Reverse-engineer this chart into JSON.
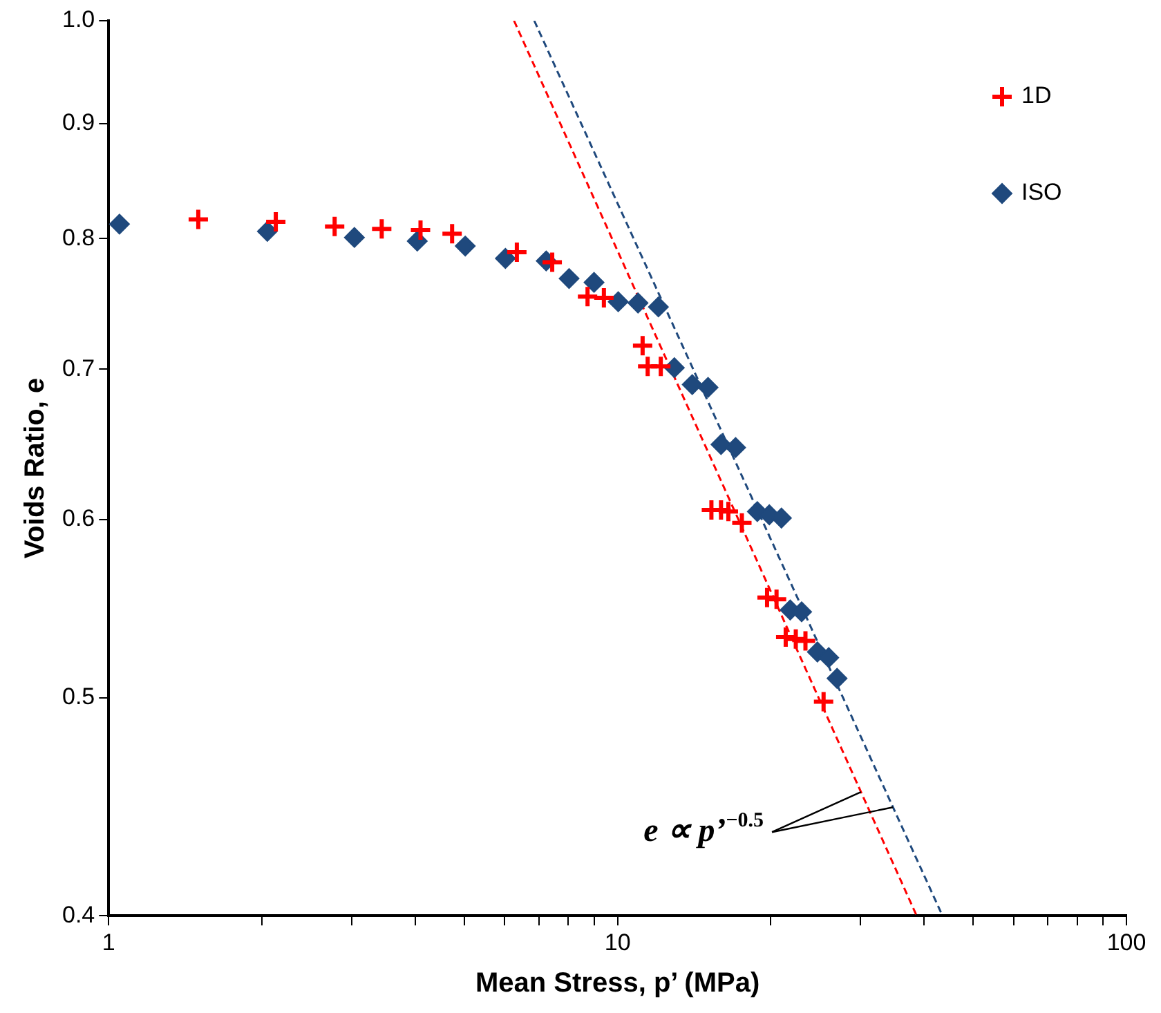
{
  "chart_data": {
    "type": "scatter",
    "xlabel": "Mean Stress, p’ (MPa)",
    "ylabel": "Voids Ratio, e",
    "log": "xy",
    "xlim": [
      1,
      100
    ],
    "ylim": [
      0.4,
      1.0
    ],
    "xticks": [
      1,
      {
        "value": 2,
        "label": null
      },
      {
        "value": 3,
        "label": null
      },
      {
        "value": 4,
        "label": null
      },
      {
        "value": 5,
        "label": null
      },
      {
        "value": 6,
        "label": null
      },
      {
        "value": 7,
        "label": null
      },
      {
        "value": 8,
        "label": null
      },
      {
        "value": 9,
        "label": null
      },
      10,
      {
        "value": 20,
        "label": null
      },
      {
        "value": 30,
        "label": null
      },
      {
        "value": 40,
        "label": null
      },
      {
        "value": 50,
        "label": null
      },
      {
        "value": 60,
        "label": null
      },
      {
        "value": 70,
        "label": null
      },
      {
        "value": 80,
        "label": null
      },
      {
        "value": 90,
        "label": null
      },
      100
    ],
    "yticks": [
      0.4,
      0.5,
      0.6,
      0.7,
      0.8,
      0.9,
      {
        "value": 1.0,
        "label": "1.0"
      }
    ],
    "grid": false,
    "legend": "top right",
    "series": [
      {
        "name": "1D",
        "color": "#ff0000",
        "marker": "cross",
        "x": [
          1.5,
          2.13,
          2.78,
          3.44,
          4.1,
          4.73,
          6.34,
          7.44,
          8.73,
          9.4,
          11.2,
          11.46,
          12.16,
          15.29,
          15.97,
          16.51,
          17.55,
          19.67,
          20.53,
          21.4,
          22.4,
          23.4,
          25.4
        ],
        "values": [
          0.816,
          0.814,
          0.81,
          0.808,
          0.807,
          0.804,
          0.789,
          0.781,
          0.754,
          0.753,
          0.717,
          0.702,
          0.702,
          0.606,
          0.606,
          0.605,
          0.598,
          0.554,
          0.553,
          0.532,
          0.531,
          0.53,
          0.498
        ]
      },
      {
        "name": "ISO",
        "color": "#1f497d",
        "marker": "diamond",
        "x": [
          1.05,
          2.05,
          3.04,
          4.04,
          5.02,
          6.02,
          7.24,
          8.03,
          8.99,
          10.03,
          10.97,
          12.03,
          12.93,
          14.02,
          15.06,
          15.97,
          17.06,
          18.82,
          19.87,
          20.99,
          21.84,
          23.0,
          24.7,
          26.0,
          27.0
        ],
        "values": [
          0.812,
          0.806,
          0.801,
          0.798,
          0.794,
          0.784,
          0.782,
          0.768,
          0.765,
          0.75,
          0.749,
          0.746,
          0.701,
          0.689,
          0.687,
          0.648,
          0.646,
          0.605,
          0.603,
          0.601,
          0.547,
          0.546,
          0.524,
          0.521,
          0.51
        ]
      },
      {
        "type": "line",
        "color": "#ff0000",
        "marker": "none",
        "line_style": "dashed",
        "x": [
          6.26,
          38.7
        ],
        "values": [
          1.0,
          0.4
        ]
      },
      {
        "type": "line",
        "color": "#1f497d",
        "marker": "none",
        "line_style": "dashed",
        "x": [
          6.86,
          43.5
        ],
        "values": [
          1.0,
          0.4
        ]
      }
    ],
    "annotations": [
      {
        "text": "e ∝ p’$^{−0.5}$",
        "x": 30.2,
        "y": 0.454
      }
    ]
  }
}
